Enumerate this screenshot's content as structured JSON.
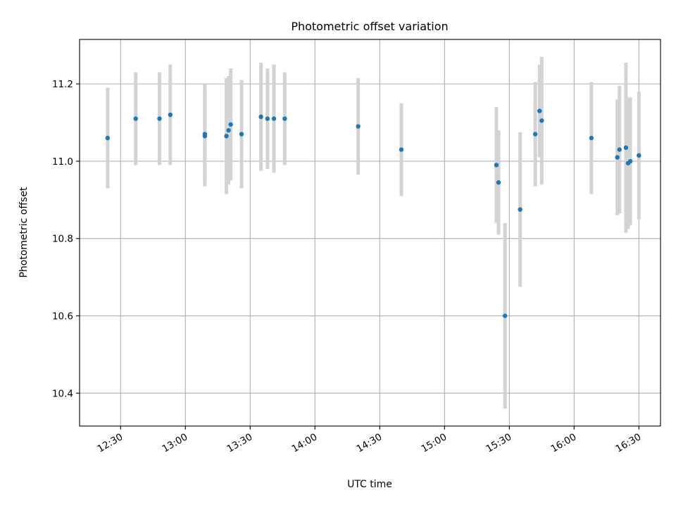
{
  "chart_data": {
    "type": "scatter",
    "title": "Photometric offset variation",
    "xlabel": "UTC time",
    "ylabel": "Photometric offset",
    "xlim": [
      "12:11",
      "16:40"
    ],
    "ylim": [
      10.315,
      11.315
    ],
    "x_ticks": [
      "12:30",
      "13:00",
      "13:30",
      "14:00",
      "14:30",
      "15:00",
      "15:30",
      "16:00",
      "16:30"
    ],
    "y_ticks": [
      "10.4",
      "10.6",
      "10.8",
      "11.0",
      "11.2"
    ],
    "grid": true,
    "marker_color": "#1f77b4",
    "errorbar_color": "#d3d3d3",
    "series": [
      {
        "points": [
          {
            "x": "12:24",
            "y": 11.06,
            "err": 0.13
          },
          {
            "x": "12:37",
            "y": 11.11,
            "err": 0.12
          },
          {
            "x": "12:48",
            "y": 11.11,
            "err": 0.12
          },
          {
            "x": "12:53",
            "y": 11.12,
            "err": 0.13
          },
          {
            "x": "13:09",
            "y": 11.07,
            "err": 0.13
          },
          {
            "x": "13:09",
            "y": 11.065,
            "err": 0.13
          },
          {
            "x": "13:19",
            "y": 11.065,
            "err": 0.15
          },
          {
            "x": "13:20",
            "y": 11.08,
            "err": 0.14
          },
          {
            "x": "13:21",
            "y": 11.095,
            "err": 0.145
          },
          {
            "x": "13:26",
            "y": 11.07,
            "err": 0.14
          },
          {
            "x": "13:35",
            "y": 11.115,
            "err": 0.14
          },
          {
            "x": "13:38",
            "y": 11.11,
            "err": 0.13
          },
          {
            "x": "13:41",
            "y": 11.11,
            "err": 0.14
          },
          {
            "x": "13:46",
            "y": 11.11,
            "err": 0.12
          },
          {
            "x": "14:20",
            "y": 11.09,
            "err": 0.125
          },
          {
            "x": "14:40",
            "y": 11.03,
            "err": 0.12
          },
          {
            "x": "15:24",
            "y": 10.99,
            "err": 0.15
          },
          {
            "x": "15:25",
            "y": 10.945,
            "err": 0.135
          },
          {
            "x": "15:28",
            "y": 10.6,
            "err": 0.24
          },
          {
            "x": "15:35",
            "y": 10.875,
            "err": 0.2
          },
          {
            "x": "15:42",
            "y": 11.07,
            "err": 0.135
          },
          {
            "x": "15:44",
            "y": 11.13,
            "err": 0.12
          },
          {
            "x": "15:45",
            "y": 11.105,
            "err": 0.165
          },
          {
            "x": "16:08",
            "y": 11.06,
            "err": 0.145
          },
          {
            "x": "16:20",
            "y": 11.01,
            "err": 0.15
          },
          {
            "x": "16:21",
            "y": 11.03,
            "err": 0.165
          },
          {
            "x": "16:24",
            "y": 11.035,
            "err": 0.22
          },
          {
            "x": "16:25",
            "y": 10.995,
            "err": 0.17
          },
          {
            "x": "16:26",
            "y": 11.0,
            "err": 0.165
          },
          {
            "x": "16:30",
            "y": 11.015,
            "err": 0.165
          }
        ]
      }
    ]
  }
}
